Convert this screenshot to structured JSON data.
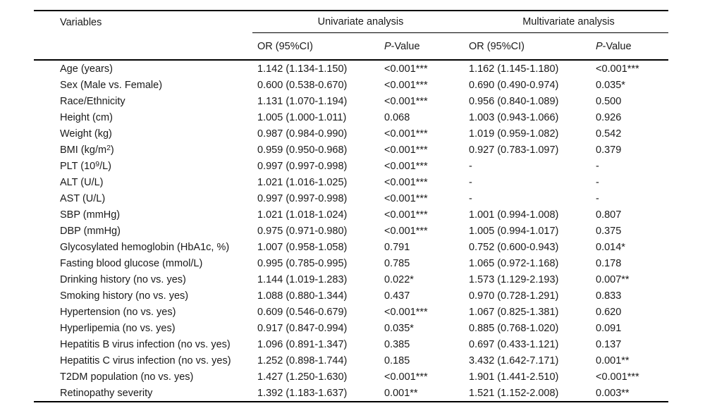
{
  "table": {
    "headers": {
      "variables": "Variables",
      "univariate": "Univariate analysis",
      "multivariate": "Multivariate analysis",
      "or_ci": "OR (95%CI)",
      "p_italic": "P",
      "p_rest": "-Value"
    },
    "rows": [
      {
        "v_pre": "Age (years)",
        "v_sup": "",
        "v_post": "",
        "uni_or": "1.142 (1.134-1.150)",
        "uni_p": "<0.001***",
        "mul_or": "1.162 (1.145-1.180)",
        "mul_p": "<0.001***"
      },
      {
        "v_pre": "Sex (Male vs. Female)",
        "v_sup": "",
        "v_post": "",
        "uni_or": "0.600 (0.538-0.670)",
        "uni_p": "<0.001***",
        "mul_or": "0.690 (0.490-0.974)",
        "mul_p": "0.035*"
      },
      {
        "v_pre": "Race/Ethnicity",
        "v_sup": "",
        "v_post": "",
        "uni_or": "1.131 (1.070-1.194)",
        "uni_p": "<0.001***",
        "mul_or": "0.956 (0.840-1.089)",
        "mul_p": "0.500"
      },
      {
        "v_pre": "Height (cm)",
        "v_sup": "",
        "v_post": "",
        "uni_or": "1.005 (1.000-1.011)",
        "uni_p": "0.068",
        "mul_or": "1.003 (0.943-1.066)",
        "mul_p": "0.926"
      },
      {
        "v_pre": "Weight (kg)",
        "v_sup": "",
        "v_post": "",
        "uni_or": "0.987 (0.984-0.990)",
        "uni_p": "<0.001***",
        "mul_or": "1.019 (0.959-1.082)",
        "mul_p": "0.542"
      },
      {
        "v_pre": "BMI (kg/m",
        "v_sup": "2",
        "v_post": ")",
        "uni_or": "0.959 (0.950-0.968)",
        "uni_p": "<0.001***",
        "mul_or": "0.927 (0.783-1.097)",
        "mul_p": "0.379"
      },
      {
        "v_pre": "PLT (10",
        "v_sup": "9",
        "v_post": "/L)",
        "uni_or": "0.997 (0.997-0.998)",
        "uni_p": "<0.001***",
        "mul_or": "-",
        "mul_p": "-"
      },
      {
        "v_pre": "ALT (U/L)",
        "v_sup": "",
        "v_post": "",
        "uni_or": "1.021 (1.016-1.025)",
        "uni_p": "<0.001***",
        "mul_or": "-",
        "mul_p": "-"
      },
      {
        "v_pre": "AST (U/L)",
        "v_sup": "",
        "v_post": "",
        "uni_or": "0.997 (0.997-0.998)",
        "uni_p": "<0.001***",
        "mul_or": "-",
        "mul_p": "-"
      },
      {
        "v_pre": "SBP (mmHg)",
        "v_sup": "",
        "v_post": "",
        "uni_or": "1.021 (1.018-1.024)",
        "uni_p": "<0.001***",
        "mul_or": "1.001 (0.994-1.008)",
        "mul_p": "0.807"
      },
      {
        "v_pre": "DBP (mmHg)",
        "v_sup": "",
        "v_post": "",
        "uni_or": "0.975 (0.971-0.980)",
        "uni_p": "<0.001***",
        "mul_or": "1.005 (0.994-1.017)",
        "mul_p": "0.375"
      },
      {
        "v_pre": "Glycosylated hemoglobin (HbA1c, %)",
        "v_sup": "",
        "v_post": "",
        "uni_or": "1.007 (0.958-1.058)",
        "uni_p": "0.791",
        "mul_or": "0.752 (0.600-0.943)",
        "mul_p": "0.014*"
      },
      {
        "v_pre": "Fasting blood glucose (mmol/L)",
        "v_sup": "",
        "v_post": "",
        "uni_or": "0.995 (0.785-0.995)",
        "uni_p": "0.785",
        "mul_or": "1.065 (0.972-1.168)",
        "mul_p": "0.178"
      },
      {
        "v_pre": "Drinking history (no vs. yes)",
        "v_sup": "",
        "v_post": "",
        "uni_or": "1.144 (1.019-1.283)",
        "uni_p": "0.022*",
        "mul_or": "1.573 (1.129-2.193)",
        "mul_p": "0.007**"
      },
      {
        "v_pre": "Smoking history (no vs. yes)",
        "v_sup": "",
        "v_post": "",
        "uni_or": "1.088 (0.880-1.344)",
        "uni_p": "0.437",
        "mul_or": "0.970 (0.728-1.291)",
        "mul_p": "0.833"
      },
      {
        "v_pre": "Hypertension (no vs. yes)",
        "v_sup": "",
        "v_post": "",
        "uni_or": "0.609 (0.546-0.679)",
        "uni_p": "<0.001***",
        "mul_or": "1.067 (0.825-1.381)",
        "mul_p": "0.620"
      },
      {
        "v_pre": "Hyperlipemia (no vs. yes)",
        "v_sup": "",
        "v_post": "",
        "uni_or": "0.917 (0.847-0.994)",
        "uni_p": "0.035*",
        "mul_or": "0.885 (0.768-1.020)",
        "mul_p": "0.091"
      },
      {
        "v_pre": "Hepatitis B virus infection (no vs. yes)",
        "v_sup": "",
        "v_post": "",
        "uni_or": "1.096 (0.891-1.347)",
        "uni_p": "0.385",
        "mul_or": "0.697 (0.433-1.121)",
        "mul_p": "0.137"
      },
      {
        "v_pre": "Hepatitis C virus infection (no vs. yes)",
        "v_sup": "",
        "v_post": "",
        "uni_or": "1.252 (0.898-1.744)",
        "uni_p": "0.185",
        "mul_or": "3.432 (1.642-7.171)",
        "mul_p": "0.001**"
      },
      {
        "v_pre": "T2DM population (no vs. yes)",
        "v_sup": "",
        "v_post": "",
        "uni_or": "1.427 (1.250-1.630)",
        "uni_p": "<0.001***",
        "mul_or": "1.901 (1.441-2.510)",
        "mul_p": "<0.001***"
      },
      {
        "v_pre": "Retinopathy severity",
        "v_sup": "",
        "v_post": "",
        "uni_or": "1.392 (1.183-1.637)",
        "uni_p": "0.001**",
        "mul_or": "1.521 (1.152-2.008)",
        "mul_p": "0.003**"
      }
    ]
  }
}
